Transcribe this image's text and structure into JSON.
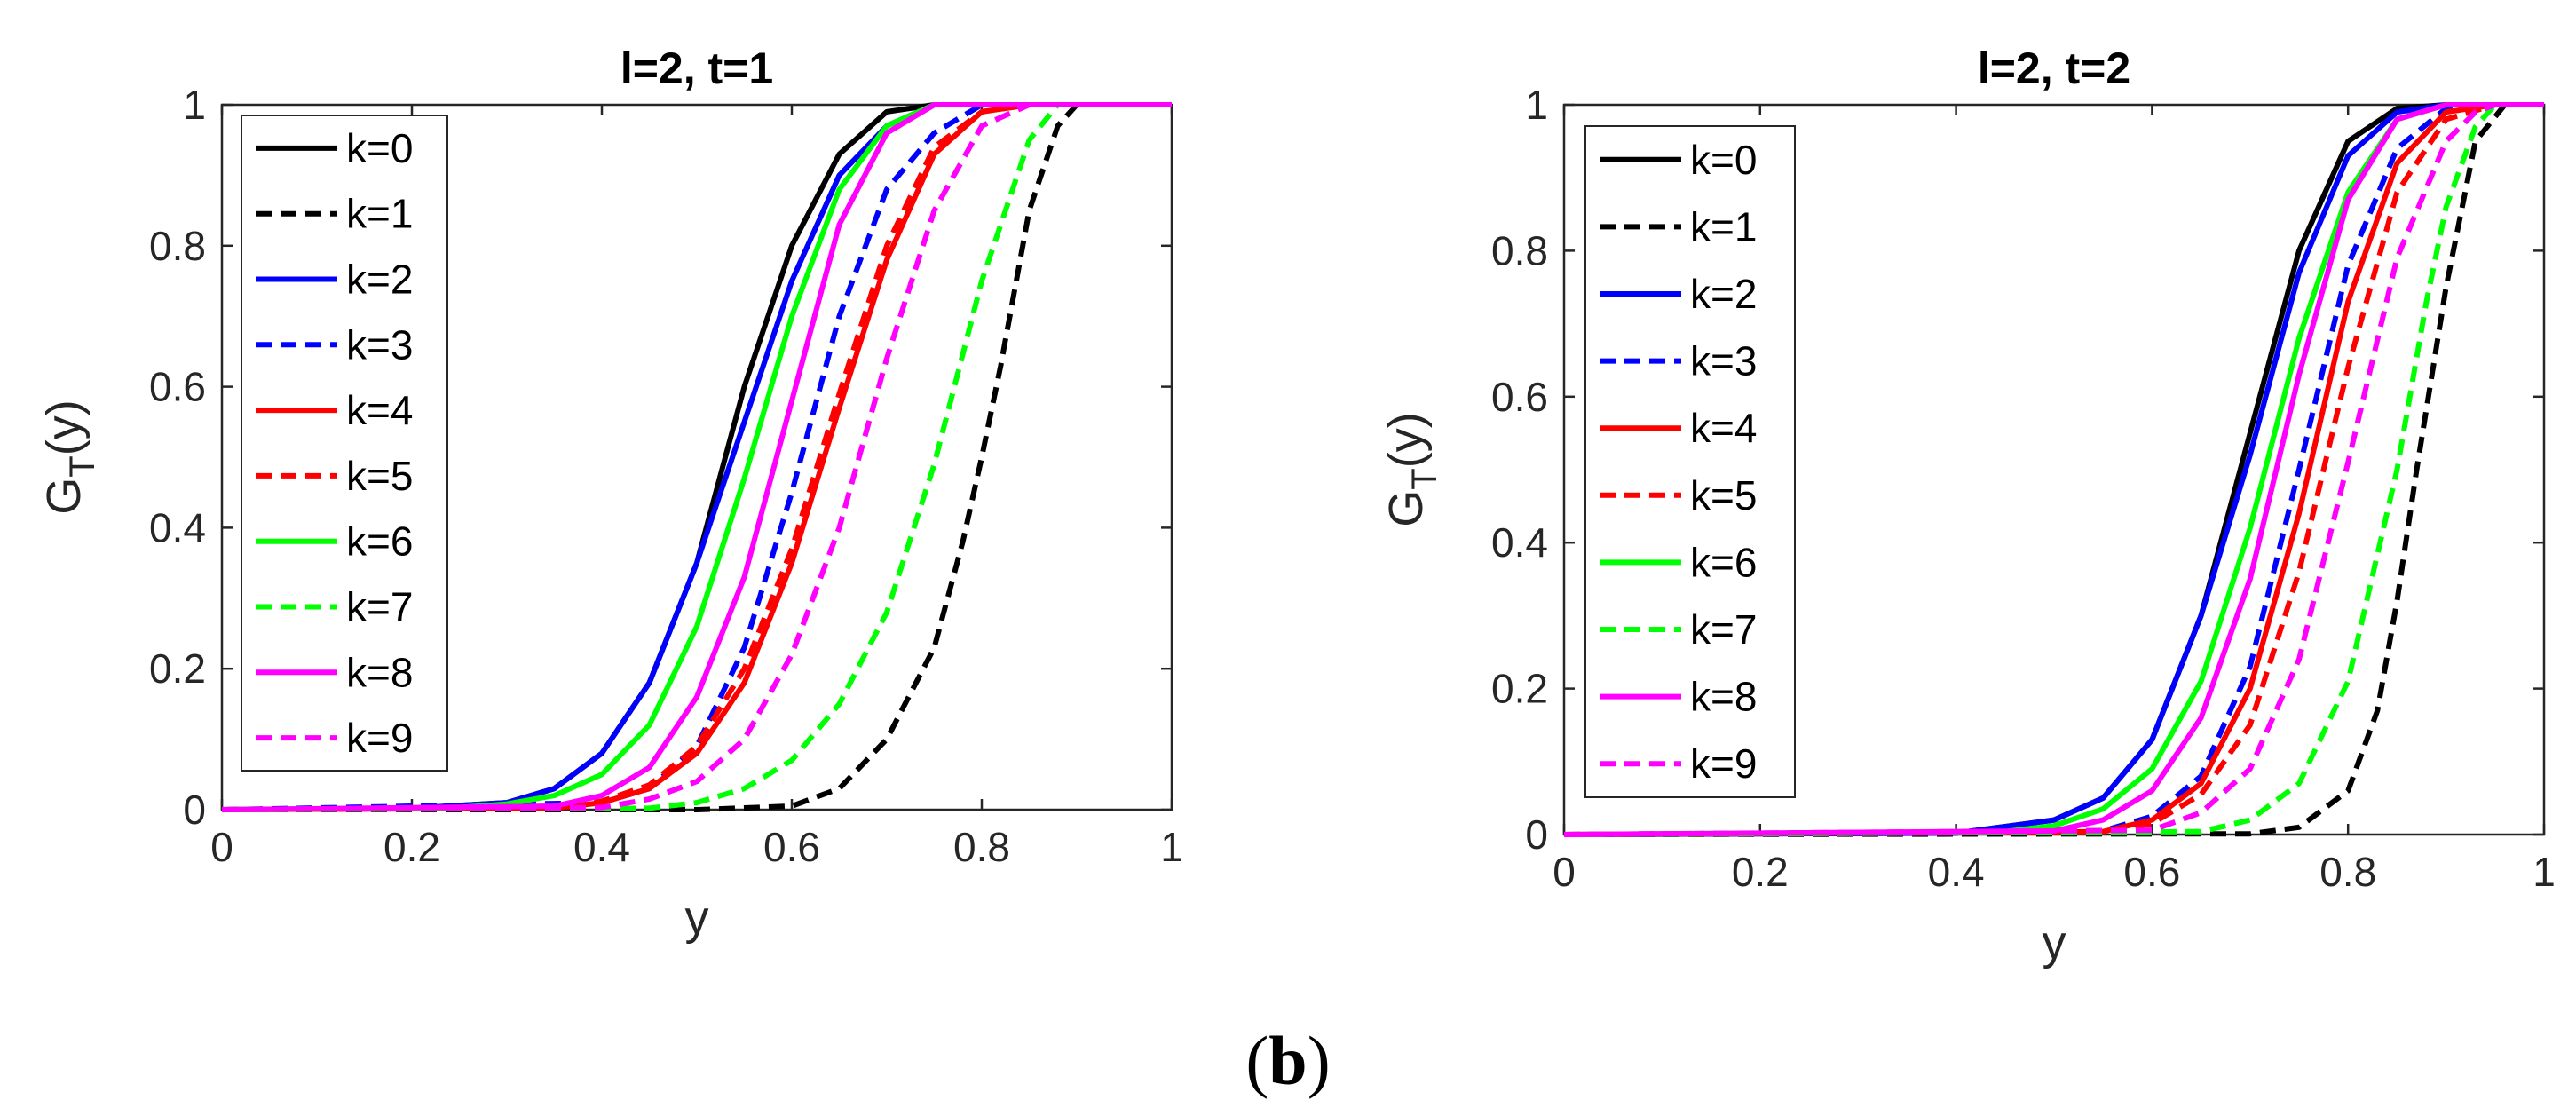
{
  "caption": {
    "open": "(",
    "letter": "b",
    "close": ")"
  },
  "chart_data": [
    {
      "type": "line",
      "title": "l=2, t=1",
      "xlabel": "y",
      "ylabel_main": "G",
      "ylabel_sub": "T",
      "ylabel_tail": "(y)",
      "xlim": [
        0,
        1
      ],
      "ylim": [
        0,
        1
      ],
      "xticks": [
        0,
        0.2,
        0.4,
        0.6,
        0.8,
        1
      ],
      "yticks": [
        0,
        0.2,
        0.4,
        0.6,
        0.8,
        1
      ],
      "xtick_labels": [
        "0",
        "0.2",
        "0.4",
        "0.6",
        "0.8",
        "1"
      ],
      "ytick_labels": [
        "0",
        "0.2",
        "0.4",
        "0.6",
        "0.8",
        "1"
      ],
      "legend_position": "top-left",
      "series": [
        {
          "name": "k=0",
          "color": "#000000",
          "dash": false,
          "x": [
            0,
            0.2,
            0.3,
            0.35,
            0.4,
            0.45,
            0.5,
            0.55,
            0.6,
            0.65,
            0.7,
            0.75,
            1
          ],
          "y": [
            0,
            0.002,
            0.01,
            0.03,
            0.08,
            0.18,
            0.35,
            0.6,
            0.8,
            0.93,
            0.99,
            1,
            1
          ]
        },
        {
          "name": "k=1",
          "color": "#000000",
          "dash": true,
          "x": [
            0,
            0.5,
            0.6,
            0.65,
            0.7,
            0.75,
            0.78,
            0.8,
            0.82,
            0.85,
            0.88,
            0.9,
            1
          ],
          "y": [
            0,
            0,
            0.005,
            0.03,
            0.1,
            0.23,
            0.38,
            0.5,
            0.63,
            0.85,
            0.97,
            1,
            1
          ]
        },
        {
          "name": "k=2",
          "color": "#0000ff",
          "dash": false,
          "x": [
            0,
            0.2,
            0.3,
            0.35,
            0.4,
            0.45,
            0.5,
            0.55,
            0.6,
            0.65,
            0.7,
            0.75,
            0.8,
            1
          ],
          "y": [
            0,
            0.002,
            0.01,
            0.03,
            0.08,
            0.18,
            0.35,
            0.55,
            0.75,
            0.9,
            0.97,
            1,
            1,
            1
          ]
        },
        {
          "name": "k=3",
          "color": "#0000ff",
          "dash": true,
          "x": [
            0,
            0.4,
            0.45,
            0.5,
            0.55,
            0.6,
            0.65,
            0.7,
            0.75,
            0.8,
            0.85,
            1
          ],
          "y": [
            0,
            0.01,
            0.03,
            0.09,
            0.23,
            0.45,
            0.7,
            0.88,
            0.96,
            1,
            1,
            1
          ]
        },
        {
          "name": "k=4",
          "color": "#ff0000",
          "dash": false,
          "x": [
            0,
            0.35,
            0.4,
            0.45,
            0.5,
            0.55,
            0.6,
            0.65,
            0.7,
            0.75,
            0.8,
            0.85,
            1
          ],
          "y": [
            0,
            0.002,
            0.01,
            0.03,
            0.08,
            0.18,
            0.35,
            0.57,
            0.78,
            0.93,
            0.99,
            1,
            1
          ]
        },
        {
          "name": "k=5",
          "color": "#ff0000",
          "dash": true,
          "x": [
            0,
            0.35,
            0.4,
            0.45,
            0.5,
            0.55,
            0.6,
            0.65,
            0.7,
            0.75,
            0.8,
            0.85,
            1
          ],
          "y": [
            0,
            0.002,
            0.012,
            0.035,
            0.09,
            0.2,
            0.37,
            0.59,
            0.8,
            0.94,
            0.99,
            1,
            1
          ]
        },
        {
          "name": "k=6",
          "color": "#00ff00",
          "dash": false,
          "x": [
            0,
            0.25,
            0.3,
            0.35,
            0.4,
            0.45,
            0.5,
            0.55,
            0.6,
            0.65,
            0.7,
            0.75,
            0.8,
            1
          ],
          "y": [
            0,
            0.003,
            0.008,
            0.02,
            0.05,
            0.12,
            0.26,
            0.47,
            0.7,
            0.88,
            0.97,
            1,
            1,
            1
          ]
        },
        {
          "name": "k=7",
          "color": "#00ff00",
          "dash": true,
          "x": [
            0,
            0.45,
            0.5,
            0.55,
            0.6,
            0.65,
            0.7,
            0.75,
            0.8,
            0.85,
            0.88,
            1
          ],
          "y": [
            0,
            0.002,
            0.01,
            0.03,
            0.07,
            0.15,
            0.28,
            0.49,
            0.75,
            0.95,
            1,
            1
          ]
        },
        {
          "name": "k=8",
          "color": "#ff00ff",
          "dash": false,
          "x": [
            0,
            0.35,
            0.4,
            0.45,
            0.5,
            0.55,
            0.6,
            0.65,
            0.7,
            0.75,
            0.8,
            1
          ],
          "y": [
            0,
            0.005,
            0.02,
            0.06,
            0.16,
            0.33,
            0.58,
            0.83,
            0.96,
            1,
            1,
            1
          ]
        },
        {
          "name": "k=9",
          "color": "#ff00ff",
          "dash": true,
          "x": [
            0,
            0.4,
            0.45,
            0.5,
            0.55,
            0.6,
            0.65,
            0.7,
            0.75,
            0.8,
            0.85,
            1
          ],
          "y": [
            0,
            0.003,
            0.015,
            0.04,
            0.1,
            0.22,
            0.4,
            0.64,
            0.85,
            0.97,
            1,
            1
          ]
        }
      ]
    },
    {
      "type": "line",
      "title": "l=2, t=2",
      "xlabel": "y",
      "ylabel_main": "G",
      "ylabel_sub": "T",
      "ylabel_tail": "(y)",
      "xlim": [
        0,
        1
      ],
      "ylim": [
        0,
        1
      ],
      "xticks": [
        0,
        0.2,
        0.4,
        0.6,
        0.8,
        1
      ],
      "yticks": [
        0,
        0.2,
        0.4,
        0.6,
        0.8,
        1
      ],
      "xtick_labels": [
        "0",
        "0.2",
        "0.4",
        "0.6",
        "0.8",
        "1"
      ],
      "ytick_labels": [
        "0",
        "0.2",
        "0.4",
        "0.6",
        "0.8",
        "1"
      ],
      "legend_position": "top-left",
      "series": [
        {
          "name": "k=0",
          "color": "#000000",
          "dash": false,
          "x": [
            0,
            0.4,
            0.5,
            0.55,
            0.6,
            0.65,
            0.7,
            0.75,
            0.8,
            0.85,
            0.9,
            1
          ],
          "y": [
            0,
            0.002,
            0.02,
            0.05,
            0.13,
            0.3,
            0.55,
            0.8,
            0.95,
            0.995,
            1,
            1
          ]
        },
        {
          "name": "k=1",
          "color": "#000000",
          "dash": true,
          "x": [
            0,
            0.7,
            0.75,
            0.8,
            0.83,
            0.85,
            0.87,
            0.9,
            0.93,
            0.96,
            1
          ],
          "y": [
            0,
            0.001,
            0.01,
            0.06,
            0.17,
            0.32,
            0.5,
            0.75,
            0.95,
            1,
            1
          ]
        },
        {
          "name": "k=2",
          "color": "#0000ff",
          "dash": false,
          "x": [
            0,
            0.4,
            0.5,
            0.55,
            0.6,
            0.65,
            0.7,
            0.75,
            0.8,
            0.85,
            0.9,
            1
          ],
          "y": [
            0,
            0.002,
            0.02,
            0.05,
            0.13,
            0.3,
            0.52,
            0.77,
            0.93,
            0.99,
            1,
            1
          ]
        },
        {
          "name": "k=3",
          "color": "#0000ff",
          "dash": true,
          "x": [
            0,
            0.55,
            0.6,
            0.65,
            0.7,
            0.75,
            0.8,
            0.85,
            0.9,
            0.95,
            1
          ],
          "y": [
            0,
            0.005,
            0.025,
            0.08,
            0.23,
            0.5,
            0.78,
            0.94,
            0.995,
            1,
            1
          ]
        },
        {
          "name": "k=4",
          "color": "#ff0000",
          "dash": false,
          "x": [
            0,
            0.55,
            0.6,
            0.65,
            0.7,
            0.75,
            0.8,
            0.85,
            0.9,
            0.95,
            1
          ],
          "y": [
            0,
            0.004,
            0.02,
            0.07,
            0.2,
            0.44,
            0.73,
            0.92,
            0.99,
            1,
            1
          ]
        },
        {
          "name": "k=5",
          "color": "#ff0000",
          "dash": true,
          "x": [
            0,
            0.55,
            0.6,
            0.65,
            0.7,
            0.75,
            0.8,
            0.85,
            0.9,
            0.95,
            1
          ],
          "y": [
            0,
            0.003,
            0.015,
            0.055,
            0.15,
            0.36,
            0.64,
            0.88,
            0.98,
            1,
            1
          ]
        },
        {
          "name": "k=6",
          "color": "#00ff00",
          "dash": false,
          "x": [
            0,
            0.45,
            0.5,
            0.55,
            0.6,
            0.65,
            0.7,
            0.75,
            0.8,
            0.85,
            0.9,
            1
          ],
          "y": [
            0,
            0.004,
            0.012,
            0.035,
            0.09,
            0.21,
            0.42,
            0.68,
            0.88,
            0.98,
            1,
            1
          ]
        },
        {
          "name": "k=7",
          "color": "#00ff00",
          "dash": true,
          "x": [
            0,
            0.65,
            0.7,
            0.75,
            0.8,
            0.85,
            0.88,
            0.9,
            0.93,
            0.95,
            1
          ],
          "y": [
            0,
            0.004,
            0.02,
            0.07,
            0.21,
            0.5,
            0.73,
            0.86,
            0.97,
            1,
            1
          ]
        },
        {
          "name": "k=8",
          "color": "#ff00ff",
          "dash": false,
          "x": [
            0,
            0.5,
            0.55,
            0.6,
            0.65,
            0.7,
            0.75,
            0.8,
            0.85,
            0.9,
            0.95,
            1
          ],
          "y": [
            0,
            0.005,
            0.02,
            0.06,
            0.16,
            0.35,
            0.63,
            0.87,
            0.98,
            1,
            1,
            1
          ]
        },
        {
          "name": "k=9",
          "color": "#ff00ff",
          "dash": true,
          "x": [
            0,
            0.6,
            0.65,
            0.7,
            0.75,
            0.8,
            0.85,
            0.9,
            0.93,
            0.95,
            1
          ],
          "y": [
            0,
            0.006,
            0.03,
            0.09,
            0.24,
            0.51,
            0.79,
            0.95,
            0.99,
            1,
            1
          ]
        }
      ]
    }
  ]
}
